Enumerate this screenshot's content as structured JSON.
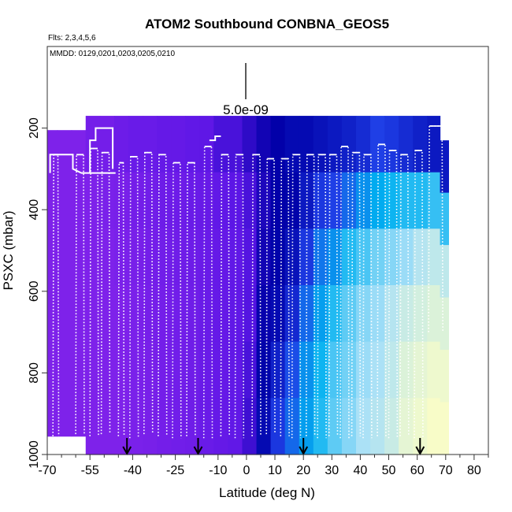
{
  "chart_data": {
    "type": "heatmap",
    "title": "ATOM2 Southbound CONBNA_GEOS5",
    "subtitle_flights": "Flts: 2,3,4,5,6",
    "subtitle_dates": "MMDD: 0129,0201,0203,0205,0210",
    "xlabel": "Latitude (deg N)",
    "ylabel": "PSXC (mbar)",
    "xlim": [
      -70,
      85
    ],
    "ylim": [
      1000,
      0
    ],
    "x_ticks": [
      -70,
      -55,
      -40,
      -25,
      -10,
      0,
      10,
      20,
      30,
      40,
      50,
      60,
      70,
      80
    ],
    "x_tick_labels": [
      "-70",
      "-55",
      "-40",
      "-25",
      "-10",
      "0",
      "10",
      "20",
      "30",
      "40",
      "50",
      "60",
      "70",
      "80"
    ],
    "y_ticks": [
      200,
      400,
      600,
      800,
      1000
    ],
    "y_tick_labels": [
      "200",
      "400",
      "600",
      "800",
      "1000"
    ],
    "scale_bar_label": "5.0e-09",
    "arrow_latitudes": [
      -42,
      -17,
      20,
      61
    ],
    "colorscale": [
      "#7e22ea",
      "#5b16e6",
      "#0000a8",
      "#1f3fe6",
      "#00b0f0",
      "#a8e0f8",
      "#f8fcc8"
    ],
    "heat_columns": [
      {
        "lat": -69,
        "ptop": 205,
        "pbot": 955,
        "values": [
          0,
          0,
          0,
          0,
          0,
          0
        ]
      },
      {
        "lat": -64,
        "ptop": 205,
        "pbot": 955,
        "values": [
          0,
          0,
          0,
          0,
          0,
          0
        ]
      },
      {
        "lat": -59,
        "ptop": 205,
        "pbot": 955,
        "values": [
          0,
          0,
          0,
          0,
          0,
          0
        ]
      },
      {
        "lat": -54,
        "ptop": 170,
        "pbot": 1000,
        "values": [
          0.05,
          0,
          0,
          0,
          0,
          0
        ]
      },
      {
        "lat": -49,
        "ptop": 170,
        "pbot": 1000,
        "values": [
          0.05,
          0.02,
          0,
          0,
          0,
          0
        ]
      },
      {
        "lat": -44,
        "ptop": 170,
        "pbot": 1000,
        "values": [
          0.08,
          0.03,
          0.02,
          0,
          0,
          0
        ]
      },
      {
        "lat": -39,
        "ptop": 170,
        "pbot": 1000,
        "values": [
          0.1,
          0.05,
          0.03,
          0.02,
          0.02,
          0.02
        ]
      },
      {
        "lat": -34,
        "ptop": 170,
        "pbot": 1000,
        "values": [
          0.1,
          0.06,
          0.05,
          0.04,
          0.03,
          0.03
        ]
      },
      {
        "lat": -29,
        "ptop": 170,
        "pbot": 1000,
        "values": [
          0.12,
          0.08,
          0.06,
          0.05,
          0.05,
          0.05
        ]
      },
      {
        "lat": -24,
        "ptop": 170,
        "pbot": 1000,
        "values": [
          0.12,
          0.08,
          0.07,
          0.06,
          0.06,
          0.06
        ]
      },
      {
        "lat": -19,
        "ptop": 170,
        "pbot": 1000,
        "values": [
          0.14,
          0.1,
          0.08,
          0.07,
          0.07,
          0.07
        ]
      },
      {
        "lat": -14,
        "ptop": 170,
        "pbot": 1000,
        "values": [
          0.15,
          0.11,
          0.1,
          0.1,
          0.1,
          0.1
        ]
      },
      {
        "lat": -9,
        "ptop": 170,
        "pbot": 1000,
        "values": [
          0.2,
          0.14,
          0.12,
          0.12,
          0.12,
          0.12
        ]
      },
      {
        "lat": -4,
        "ptop": 170,
        "pbot": 1000,
        "values": [
          0.2,
          0.16,
          0.14,
          0.14,
          0.14,
          0.14
        ]
      },
      {
        "lat": 1,
        "ptop": 170,
        "pbot": 1000,
        "values": [
          0.25,
          0.2,
          0.18,
          0.18,
          0.2,
          0.22
        ]
      },
      {
        "lat": 6,
        "ptop": 170,
        "pbot": 1000,
        "values": [
          0.3,
          0.28,
          0.3,
          0.32,
          0.34,
          0.36
        ]
      },
      {
        "lat": 11,
        "ptop": 170,
        "pbot": 1000,
        "values": [
          0.33,
          0.33,
          0.34,
          0.36,
          0.42,
          0.48
        ]
      },
      {
        "lat": 16,
        "ptop": 170,
        "pbot": 1000,
        "values": [
          0.36,
          0.34,
          0.38,
          0.44,
          0.52,
          0.56
        ]
      },
      {
        "lat": 21,
        "ptop": 170,
        "pbot": 1000,
        "values": [
          0.36,
          0.4,
          0.48,
          0.56,
          0.62,
          0.64
        ]
      },
      {
        "lat": 26,
        "ptop": 170,
        "pbot": 1000,
        "values": [
          0.38,
          0.48,
          0.58,
          0.64,
          0.68,
          0.7
        ]
      },
      {
        "lat": 31,
        "ptop": 170,
        "pbot": 1000,
        "values": [
          0.4,
          0.5,
          0.62,
          0.7,
          0.74,
          0.76
        ]
      },
      {
        "lat": 36,
        "ptop": 170,
        "pbot": 1000,
        "values": [
          0.42,
          0.56,
          0.7,
          0.76,
          0.78,
          0.8
        ]
      },
      {
        "lat": 41,
        "ptop": 170,
        "pbot": 1000,
        "values": [
          0.45,
          0.62,
          0.74,
          0.8,
          0.82,
          0.84
        ]
      },
      {
        "lat": 46,
        "ptop": 170,
        "pbot": 1000,
        "values": [
          0.5,
          0.66,
          0.78,
          0.82,
          0.84,
          0.86
        ]
      },
      {
        "lat": 51,
        "ptop": 170,
        "pbot": 1000,
        "values": [
          0.48,
          0.68,
          0.8,
          0.86,
          0.88,
          0.9
        ]
      },
      {
        "lat": 56,
        "ptop": 170,
        "pbot": 1000,
        "values": [
          0.45,
          0.7,
          0.82,
          0.9,
          0.94,
          0.96
        ]
      },
      {
        "lat": 61,
        "ptop": 170,
        "pbot": 1000,
        "values": [
          0.42,
          0.7,
          0.86,
          0.92,
          0.96,
          0.98
        ]
      },
      {
        "lat": 66,
        "ptop": 170,
        "pbot": 1000,
        "values": [
          0.4,
          0.72,
          0.88,
          0.94,
          0.98,
          1.0
        ]
      },
      {
        "lat": 70,
        "ptop": 230,
        "pbot": 1000,
        "values": [
          0.4,
          0.72,
          0.88,
          0.94,
          0.98,
          1.0
        ]
      }
    ],
    "profiles": [
      {
        "lat0": -68,
        "lat1": -66,
        "pmin": 265,
        "pmax": 955
      },
      {
        "lat0": -60,
        "lat1": -57,
        "pmin": 265,
        "pmax": 950
      },
      {
        "lat0": -55,
        "lat1": -52,
        "pmin": 250,
        "pmax": 955
      },
      {
        "lat0": -51,
        "lat1": -48,
        "pmin": 260,
        "pmax": 950
      },
      {
        "lat0": -45,
        "lat1": -43,
        "pmin": 285,
        "pmax": 955
      },
      {
        "lat0": -41,
        "lat1": -38,
        "pmin": 270,
        "pmax": 960
      },
      {
        "lat0": -36,
        "lat1": -33,
        "pmin": 260,
        "pmax": 950
      },
      {
        "lat0": -31,
        "lat1": -28,
        "pmin": 265,
        "pmax": 955
      },
      {
        "lat0": -26,
        "lat1": -23,
        "pmin": 285,
        "pmax": 960
      },
      {
        "lat0": -21,
        "lat1": -18,
        "pmin": 285,
        "pmax": 955
      },
      {
        "lat0": -15,
        "lat1": -12,
        "pmin": 245,
        "pmax": 960
      },
      {
        "lat0": -9,
        "lat1": -6,
        "pmin": 265,
        "pmax": 955
      },
      {
        "lat0": -4,
        "lat1": -1,
        "pmin": 265,
        "pmax": 960
      },
      {
        "lat0": 2,
        "lat1": 5,
        "pmin": 265,
        "pmax": 955
      },
      {
        "lat0": 7,
        "lat1": 10,
        "pmin": 275,
        "pmax": 950
      },
      {
        "lat0": 12,
        "lat1": 15,
        "pmin": 275,
        "pmax": 955
      },
      {
        "lat0": 16,
        "lat1": 19,
        "pmin": 265,
        "pmax": 960
      },
      {
        "lat0": 21,
        "lat1": 24,
        "pmin": 265,
        "pmax": 955
      },
      {
        "lat0": 25,
        "lat1": 28,
        "pmin": 265,
        "pmax": 960
      },
      {
        "lat0": 29,
        "lat1": 32,
        "pmin": 265,
        "pmax": 955
      },
      {
        "lat0": 33,
        "lat1": 36,
        "pmin": 245,
        "pmax": 960
      },
      {
        "lat0": 37,
        "lat1": 40,
        "pmin": 260,
        "pmax": 955
      },
      {
        "lat0": 41,
        "lat1": 44,
        "pmin": 265,
        "pmax": 960
      },
      {
        "lat0": 46,
        "lat1": 49,
        "pmin": 240,
        "pmax": 955
      },
      {
        "lat0": 50,
        "lat1": 53,
        "pmin": 255,
        "pmax": 960
      },
      {
        "lat0": 54,
        "lat1": 57,
        "pmin": 265,
        "pmax": 955
      },
      {
        "lat0": 59,
        "lat1": 62,
        "pmin": 255,
        "pmax": 960
      },
      {
        "lat0": 64,
        "lat1": 69,
        "pmin": 195,
        "pmax": 700
      }
    ],
    "flight_tracks": [
      [
        [
          -69,
          310
        ],
        [
          -69,
          265
        ],
        [
          -61,
          265
        ],
        [
          -61,
          300
        ],
        [
          -58,
          310
        ],
        [
          -55,
          310
        ],
        [
          -55,
          230
        ],
        [
          -53,
          230
        ],
        [
          -53,
          200
        ],
        [
          -47,
          200
        ],
        [
          -47,
          300
        ]
      ],
      [
        [
          -55,
          310
        ],
        [
          -46,
          310
        ]
      ],
      [
        [
          -13,
          230
        ],
        [
          -11,
          230
        ],
        [
          -11,
          220
        ],
        [
          -9,
          220
        ]
      ]
    ]
  }
}
